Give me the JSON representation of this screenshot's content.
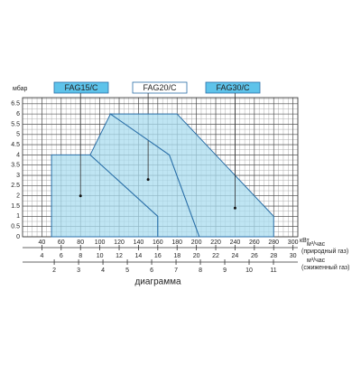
{
  "chart_data": {
    "type": "area-polygon",
    "y_label": "мбар",
    "x_label": "кВт",
    "xlim": [
      20,
      305
    ],
    "xticks": [
      40,
      60,
      80,
      100,
      120,
      140,
      160,
      180,
      200,
      220,
      240,
      260,
      280,
      300
    ],
    "ylim": [
      0,
      6.8
    ],
    "yticks": [
      0,
      0.5,
      1,
      1.5,
      2,
      2.5,
      3,
      3.5,
      4,
      4.5,
      5,
      5.5,
      6,
      6.5
    ],
    "x_minor_step": 5,
    "y_minor_step": 0.25,
    "grid": true,
    "x2_label": [
      "м³/час",
      "(природный газ)"
    ],
    "x2lim": [
      2,
      30.5
    ],
    "x2ticks": [
      4,
      6,
      8,
      10,
      12,
      14,
      16,
      18,
      20,
      22,
      24,
      26,
      28,
      30
    ],
    "x3_label": [
      "м³/час",
      "(сжиженный газ)"
    ],
    "x3lim": [
      0.7,
      12
    ],
    "x3ticks": [
      2,
      3,
      4,
      5,
      6,
      7,
      8,
      9,
      10,
      11
    ],
    "caption": "диаграмма",
    "series": [
      {
        "name": "FAG15/C",
        "color": "#2a6fa8",
        "fill": "#a9dcef",
        "label_fill": "#5ec3ea",
        "x": [
          50,
          50,
          90,
          160,
          160
        ],
        "values": [
          0,
          4,
          4,
          1,
          0
        ],
        "point": [
          80,
          2
        ]
      },
      {
        "name": "FAG20/C",
        "color": "#2a6fa8",
        "fill": "#a9dcef",
        "label_fill": "#ffffff",
        "x": [
          90,
          111,
          172,
          203,
          160,
          160
        ],
        "values": [
          4,
          6,
          4,
          0,
          0,
          1
        ],
        "point": [
          150,
          2.8
        ]
      },
      {
        "name": "FAG30/C",
        "color": "#2a6fa8",
        "fill": "#a9dcef",
        "label_fill": "#5ec3ea",
        "x": [
          111,
          180,
          280,
          280,
          203,
          172
        ],
        "values": [
          6,
          6,
          1,
          0,
          0,
          4
        ],
        "point": [
          240,
          1.4
        ]
      }
    ]
  }
}
